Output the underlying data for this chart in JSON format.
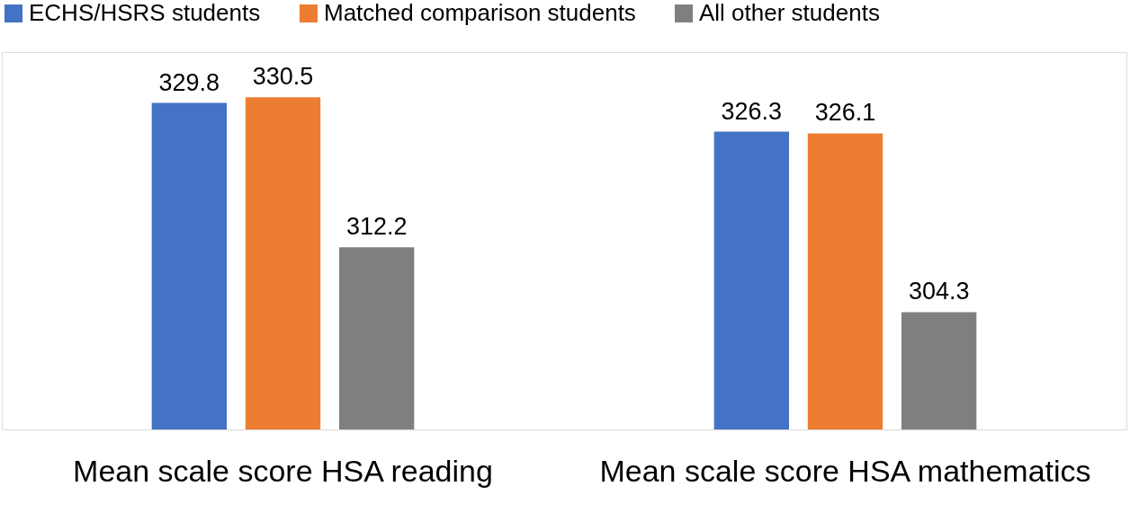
{
  "chart_data": {
    "type": "bar",
    "categories": [
      "Mean scale score HSA reading",
      "Mean scale score HSA mathematics"
    ],
    "series": [
      {
        "name": "ECHS/HSRS students",
        "color": "#4472c4",
        "values": [
          329.8,
          326.3
        ]
      },
      {
        "name": "Matched comparison students",
        "color": "#ed7d31",
        "values": [
          330.5,
          326.1
        ]
      },
      {
        "name": "All other students",
        "color": "#7f7f7f",
        "values": [
          312.2,
          304.3
        ]
      }
    ],
    "ylim": [
      290,
      336
    ],
    "data_labels": true,
    "legend": "top",
    "grid": false,
    "tick_labels": "x"
  }
}
